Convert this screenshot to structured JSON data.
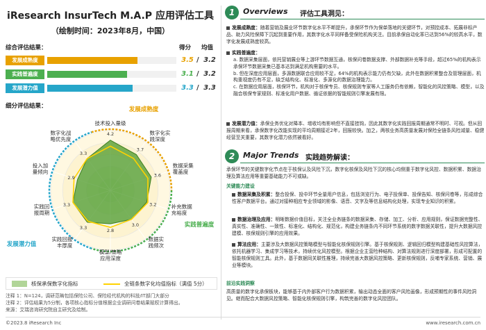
{
  "header": {
    "title": "iResearch InsurTech M.A.P 应用评估工具",
    "subtitle": "（绘制时间：2023年8月，中国）"
  },
  "summary": {
    "label": "综合评估结果：",
    "col1": "得分",
    "col2": "均值",
    "rows": [
      {
        "name": "发展成熟度",
        "score": "3.5",
        "sep": "/",
        "avg": "3.2",
        "value": 3.5,
        "color": "#e8a100"
      },
      {
        "name": "实践普遍度",
        "score": "3.1",
        "sep": "/",
        "avg": "3.2",
        "value": 3.1,
        "color": "#4caf50"
      },
      {
        "name": "发展潜力值",
        "score": "3.3",
        "sep": "/",
        "avg": "3.3",
        "value": 3.3,
        "color": "#26a6c9"
      }
    ]
  },
  "detail_label": "细分评估结果：",
  "chart_data": {
    "type": "radar",
    "scale_max": 5,
    "groups": [
      {
        "name": "发展成熟度",
        "color": "#e8a100"
      },
      {
        "name": "实践普遍度",
        "color": "#4caf50"
      },
      {
        "name": "发展潜力值",
        "color": "#26a6c9"
      }
    ],
    "axes": [
      "技术投入量级",
      "数字化实践深度",
      "数据采集覆盖度",
      "补充数据充裕度",
      "数据实践频次",
      "模型/策略应用深度",
      "实践回报丰厚度",
      "实践回报周期",
      "投入加量倾向",
      "数字化战略优先度"
    ],
    "series": [
      {
        "name": "核保承保数字化指标",
        "values": [
          4.2,
          3.7,
          3.6,
          3.2,
          3.0,
          2.8,
          3.3,
          3.3,
          2.9,
          3.3
        ]
      },
      {
        "name": "全链条数字化均值指标（满值 5分）",
        "values": [
          3.7,
          3.3,
          3.3,
          3.3,
          3.0,
          3.1,
          3.2,
          3.3,
          3.2,
          3.3
        ]
      }
    ],
    "value_labels": [
      "4.2",
      "3.7",
      "3.6",
      "3.2",
      "3.0",
      "2.8",
      "3.3",
      "3.3",
      "2.9",
      "3.3"
    ]
  },
  "legend": {
    "item1": "核保承保数字化指标",
    "item2": "全链条数字化均值指标（满值 5分）"
  },
  "notes": [
    "注释 1：N=124，调研范畴包括保险公司、保险经代机构的科技/IT部门大部分",
    "注释 2：评估结果为5分制，各项核心指标分值根据企业调研问卷结果赋权计算得出。",
    "来源：艾瑞咨询研究院自主研究及绘制。"
  ],
  "footer": {
    "left": "©2023.8 iResearch Inc",
    "right": "www.iresearch.com.cn"
  },
  "overview": {
    "num": "1",
    "en": "Overviews",
    "cn": "评估工具洞见：",
    "p1_head": "发展成熟度：",
    "p1": "随着营销及展业环节数字化水平不断提升，承保环节作为保单落地的关键环节，对预控成本、拓展非标产品、助力风险保障下沉起到重要作用，其数字化水平同样备受保险机构关注。目前承保自动化率已达到56%的较高水平，数字化发展成熟度较高。",
    "p2_head": "实践普遍度：",
    "p2a": "a. 数据采集层面，依托营销展业等上游环节数据互通，核保问卷数据支撑、外部数据补充等手段，超过65%的机构表示承保环节数据采集已基本达到满足机构需要的水平。",
    "p2b": "b. 但在深度应用层面，多源数据联合应用较不足，64%的机构表示能力仍有欠缺，此外在数据积累整合及管理层面，机构重视度仍有不足，缺乏结构化、标准化、多源化的数据治理能力。",
    "p2c": "c. 在数据应用层面，核保环节，机构对于核保专员、核保规则专家等人工服务仍有依赖，智能化的风控策略、模型，以及融合核保专家规则、标准化用户数据、循证依据的智能规则引擎发展有限。",
    "p3_head": "发展潜力值：",
    "p3": "承保业务优化对降本、增收均有影响但不直接挂钩，因此其数字化实践回报周期通常不明时、可视。但从回报周期来看，承保数字化改能实现的平均周期接近2年，回报较快。加之，两核业务高质量发展对保险全链条风险减量、稳健经营至关重要，其数字化潜力依然被看好。"
  },
  "trends": {
    "num": "2",
    "en": "Major Trends",
    "cn": "实践趋势解读：",
    "intro": "承保环节的关键数字化节点在于核保认及风险下沉，数字化核保及风险下沉的核心均侧重于数字化风控、数据积累、数据治理及算法应用等重要基础能力不可或缺。",
    "tag1": "关键能力建设",
    "b1_head": "数据采集及积累：",
    "b1": "整合投保、投中环节全量用户信息，包括浏览行为、电子投保单、投保告知、核保问卷等，形成综合性客户数据平台。通过对接种相应专业领域的影像、语音、文字及等信息结构化处理，实现专业知识的积累。",
    "b2_head": "数据治理及应用：",
    "b2": "明晰数据价值目标，关注全业务链条的数据采集、存储、加工、分析、应用规则，保证数据完整性、真实性、准确性、一致性、标准化、结构化、规范化，构建业务链条内不同环节系统的数字数据关联性，提升大数据风控建模、核保规则引擎的应用效果。",
    "b3_head": "算法应用：",
    "b3": "主要涉及大数据风控策略模型与智能化核保规则引擎。基于核保规则、逻辑回归模型构建基础性风控算法，依托机器学习、集成学习等技术，持续优化风控模型。根据企业主营险种结构、对算法规则进行深度部署，形成可配置的智能核保规则工具。此外，基于数据同关联性推理，持续完善大数据风控策略、更新核保规则，反哺专家系统、营销、展业等模块。",
    "tag2": "前沿实践洞察",
    "p_end": "高质量的数字化承保板块，能够基于内外部客户行为数据积累，输出动态全面的客户风险画像，形成预期性的事件风险洞见。继而配合大数据风控策略、智能化核保规则引擎，构筑完善的数字化风控团队。"
  }
}
